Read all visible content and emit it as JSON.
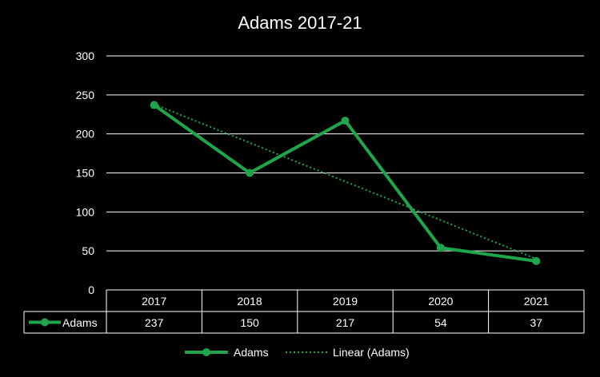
{
  "chart_data": {
    "type": "line",
    "title": "Adams 2017-21",
    "categories": [
      "2017",
      "2018",
      "2019",
      "2020",
      "2021"
    ],
    "series": [
      {
        "name": "Adams",
        "values": [
          237,
          150,
          217,
          54,
          37
        ]
      }
    ],
    "trendline": {
      "name": "Linear (Adams)",
      "type": "linear"
    },
    "ylim": [
      0,
      300
    ],
    "yticks": [
      0,
      50,
      100,
      150,
      200,
      250,
      300
    ],
    "grid": true,
    "data_table": true,
    "legend_position": "bottom",
    "colors": {
      "series": "#1fa64a",
      "trend": "#1fa64a",
      "grid": "#ffffff",
      "background": "#000000",
      "text": "#ffffff"
    }
  }
}
